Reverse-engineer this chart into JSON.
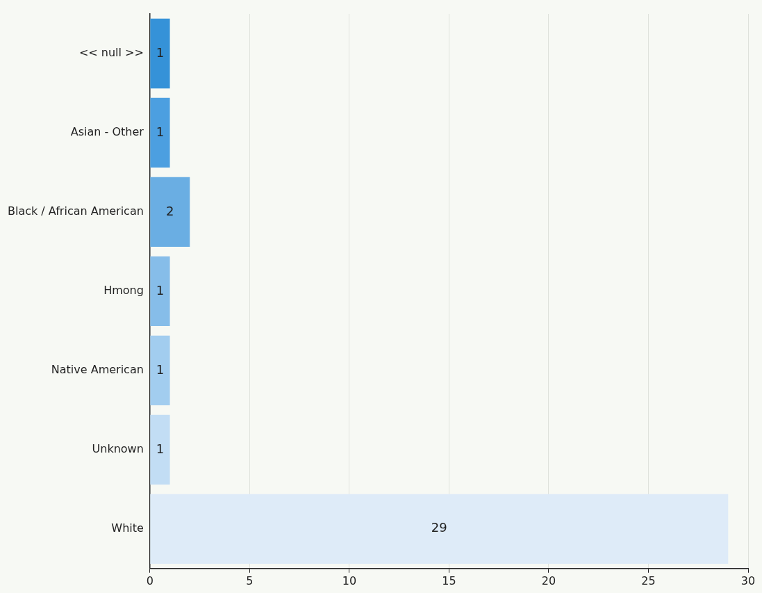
{
  "chart_data": {
    "type": "bar",
    "orientation": "horizontal",
    "categories": [
      "<< null >>",
      "Asian - Other",
      "Black / African American",
      "Hmong",
      "Native American",
      "Unknown",
      "White"
    ],
    "values": [
      1,
      1,
      2,
      1,
      1,
      1,
      29
    ],
    "colors": [
      "#3592d8",
      "#4c9fe0",
      "#6aaee3",
      "#86bde9",
      "#a2cdef",
      "#c2ddf4",
      "#deebf8"
    ],
    "xlim": [
      0,
      30
    ],
    "xticks": [
      0,
      5,
      10,
      15,
      20,
      25,
      30
    ],
    "grid": "x",
    "data_labels": true,
    "legend": false
  }
}
